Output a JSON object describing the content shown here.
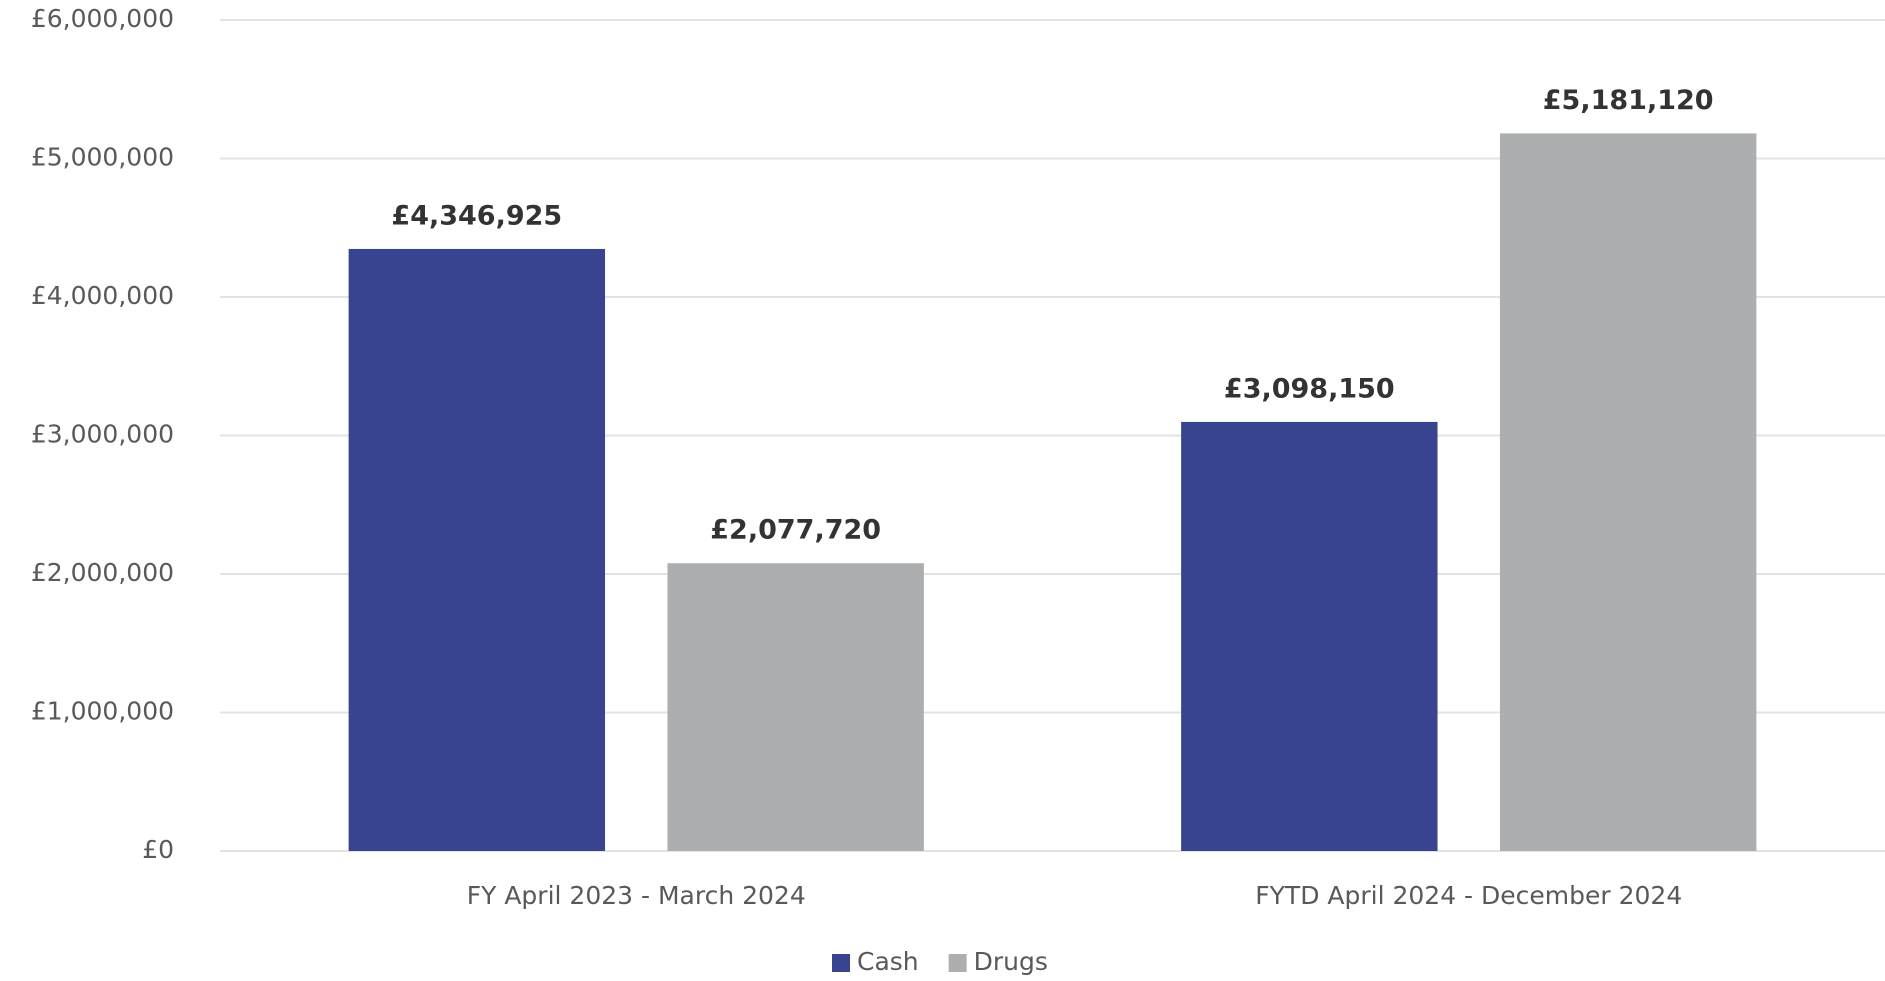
{
  "chart_data": {
    "type": "bar",
    "categories": [
      "FY April 2023 - March 2024",
      "FYTD April 2024 - December 2024"
    ],
    "series": [
      {
        "name": "Cash",
        "color": "#38448f",
        "values": [
          4346925,
          3098150
        ],
        "value_labels": [
          "£4,346,925",
          "£3,098,150"
        ]
      },
      {
        "name": "Drugs",
        "color": "#adaeb0",
        "values": [
          2077720,
          5181120
        ],
        "value_labels": [
          "£2,077,720",
          "£5,181,120"
        ]
      }
    ],
    "ylim": [
      0,
      6000000
    ],
    "yticks": [
      {
        "value": 0,
        "label": "£0"
      },
      {
        "value": 1000000,
        "label": "£1,000,000"
      },
      {
        "value": 2000000,
        "label": "£2,000,000"
      },
      {
        "value": 3000000,
        "label": "£3,000,000"
      },
      {
        "value": 4000000,
        "label": "£4,000,000"
      },
      {
        "value": 5000000,
        "label": "£5,000,000"
      },
      {
        "value": 6000000,
        "label": "£6,000,000"
      }
    ],
    "grid": true,
    "legend": "bottom"
  }
}
